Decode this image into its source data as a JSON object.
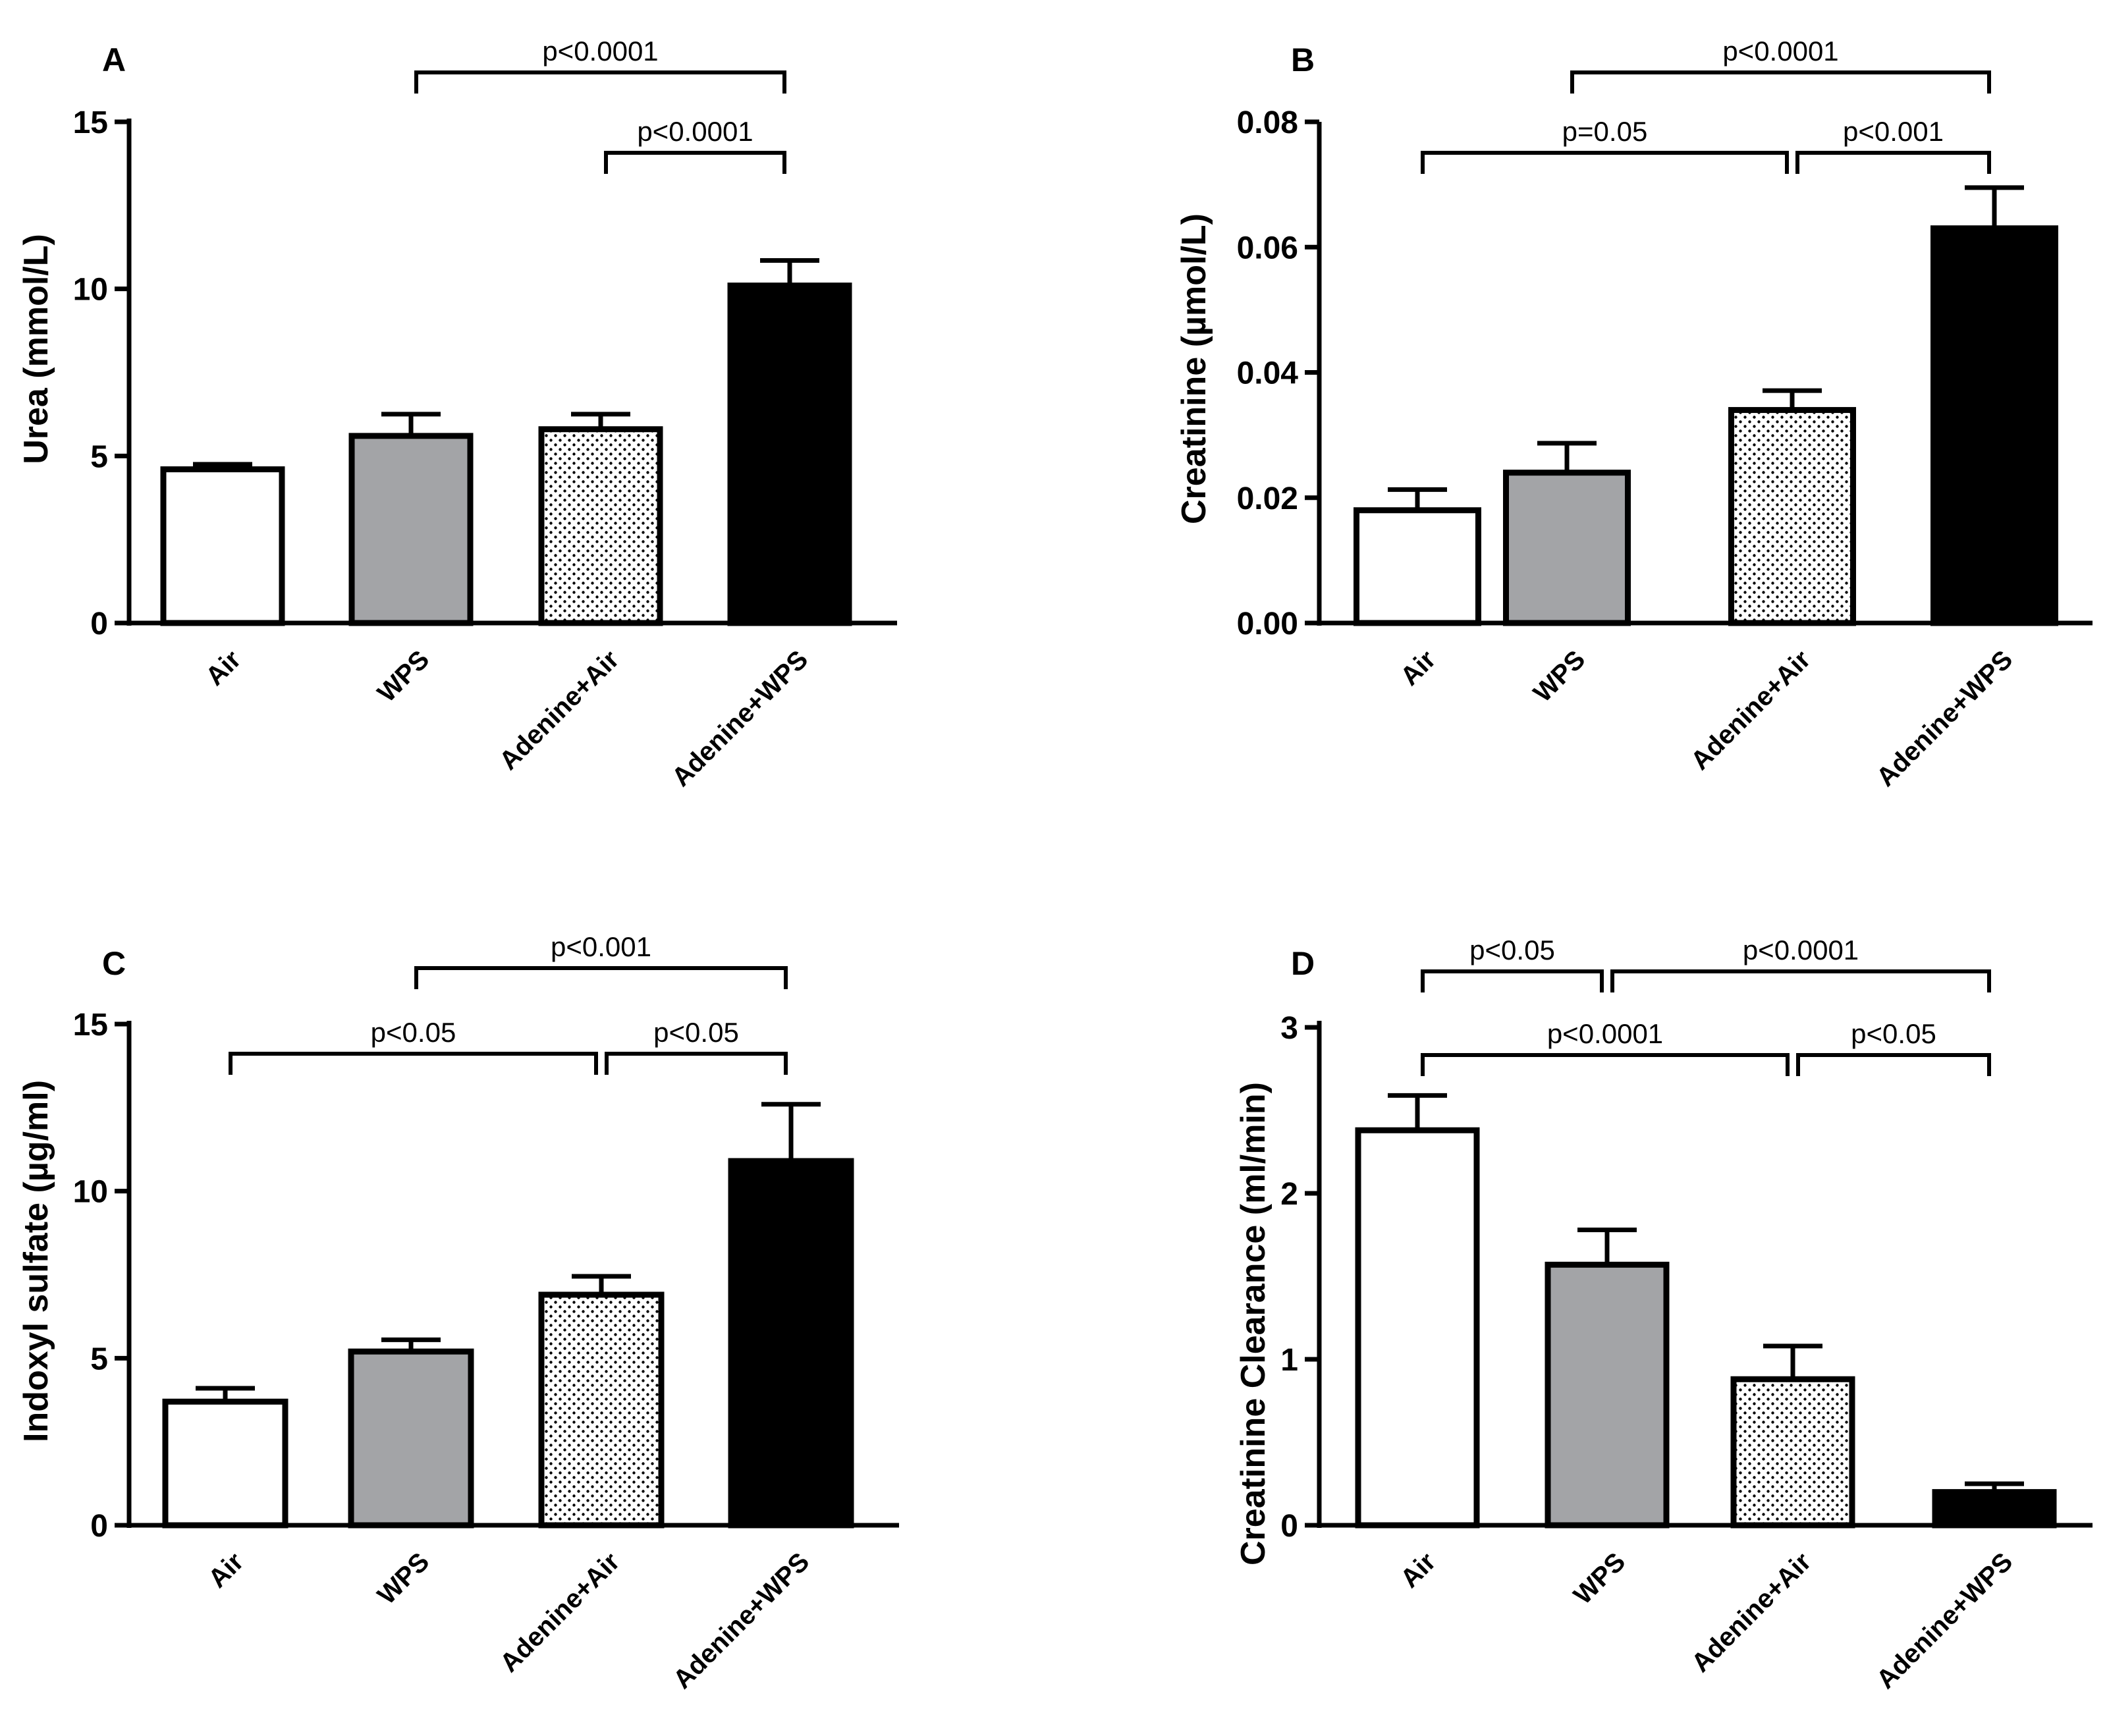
{
  "colors": {
    "air": "#ffffff",
    "wps": "#a3a4a7",
    "adenine_air": "url(#dots)",
    "adenine_wps": "#000000",
    "line": "#000000"
  },
  "chart_data": [
    {
      "panel": "A",
      "type": "bar",
      "title": "",
      "xlabel": "",
      "ylabel": "Urea (mmol/L)",
      "ylim": [
        0,
        15
      ],
      "yticks": [
        0,
        5,
        10,
        15
      ],
      "ytick_labels": [
        "0",
        "5",
        "10",
        "15"
      ],
      "categories": [
        "Air",
        "WPS",
        "Adenine+Air",
        "Adenine+WPS"
      ],
      "values": [
        4.6,
        5.6,
        5.8,
        10.1
      ],
      "errors": [
        0.15,
        0.65,
        0.45,
        0.75
      ],
      "significance": [
        {
          "from": 1,
          "to": 3,
          "label": "p<0.0001",
          "level": 2
        },
        {
          "from": 2,
          "to": 3,
          "label": "p<0.0001",
          "level": 1
        }
      ]
    },
    {
      "panel": "B",
      "type": "bar",
      "title": "",
      "xlabel": "",
      "ylabel": "Creatinine (µmol/L)",
      "ylim": [
        0,
        0.08
      ],
      "yticks": [
        0,
        0.02,
        0.04,
        0.06,
        0.08
      ],
      "ytick_labels": [
        "0.00",
        "0.02",
        "0.04",
        "0.06",
        "0.08"
      ],
      "categories": [
        "Air",
        "WPS",
        "Adenine+Air",
        "Adenine+WPS"
      ],
      "values": [
        0.018,
        0.024,
        0.034,
        0.063
      ],
      "errors": [
        0.0033,
        0.0047,
        0.0031,
        0.0065
      ],
      "significance": [
        {
          "from": 1,
          "to": 3,
          "label": "p<0.0001",
          "level": 2
        },
        {
          "from": 0,
          "to": 2,
          "label": "p=0.05",
          "level": 1
        },
        {
          "from": 2,
          "to": 3,
          "label": "p<0.001",
          "level": 1
        }
      ]
    },
    {
      "panel": "C",
      "type": "bar",
      "title": "",
      "xlabel": "",
      "ylabel": "Indoxyl sulfate  (µg/ml)",
      "ylim": [
        0,
        15
      ],
      "yticks": [
        0,
        5,
        10,
        15
      ],
      "ytick_labels": [
        "0",
        "5",
        "10",
        "15"
      ],
      "categories": [
        "Air",
        "WPS",
        "Adenine+Air",
        "Adenine+WPS"
      ],
      "values": [
        3.7,
        5.2,
        6.9,
        10.9
      ],
      "errors": [
        0.4,
        0.35,
        0.55,
        1.7
      ],
      "significance": [
        {
          "from": 1,
          "to": 3,
          "label": "p<0.001",
          "level": 2
        },
        {
          "from": 0,
          "to": 2,
          "label": "p<0.05",
          "level": 1
        },
        {
          "from": 2,
          "to": 3,
          "label": "p<0.05",
          "level": 1
        }
      ]
    },
    {
      "panel": "D",
      "type": "bar",
      "title": "",
      "xlabel": "",
      "ylabel": "Creatinine Clearance (ml/min)",
      "ylim": [
        0,
        3
      ],
      "yticks": [
        0,
        1,
        2,
        3
      ],
      "ytick_labels": [
        "0",
        "1",
        "2",
        "3"
      ],
      "categories": [
        "Air",
        "WPS",
        "Adenine+Air",
        "Adenine+WPS"
      ],
      "values": [
        2.38,
        1.57,
        0.88,
        0.2
      ],
      "errors": [
        0.21,
        0.21,
        0.2,
        0.05
      ],
      "significance": [
        {
          "from": 0,
          "to": 1,
          "label": "p<0.05",
          "level": 2
        },
        {
          "from": 1,
          "to": 3,
          "label": "p<0.0001",
          "level": 2
        },
        {
          "from": 0,
          "to": 2,
          "label": "p<0.0001",
          "level": 1
        },
        {
          "from": 2,
          "to": 3,
          "label": "p<0.05",
          "level": 1
        }
      ]
    }
  ]
}
